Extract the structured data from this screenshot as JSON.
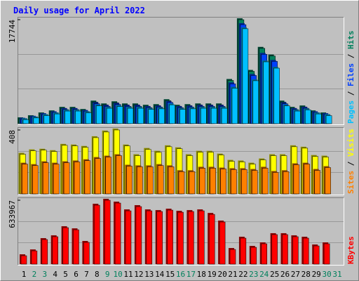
{
  "chart_data": [
    {
      "type": "bar",
      "title": "Daily usage for April 2022",
      "categories": [
        "1",
        "2",
        "3",
        "4",
        "5",
        "6",
        "7",
        "8",
        "9",
        "10",
        "11",
        "12",
        "13",
        "14",
        "15",
        "16",
        "17",
        "18",
        "19",
        "20",
        "21",
        "22",
        "23",
        "24",
        "25",
        "26",
        "27",
        "28",
        "29",
        "30",
        "31"
      ],
      "category_colors": [
        "#000000",
        "#00805c",
        "#00805c",
        "#000000",
        "#000000",
        "#000000",
        "#000000",
        "#000000",
        "#00805c",
        "#00805c",
        "#000000",
        "#000000",
        "#000000",
        "#000000",
        "#000000",
        "#00805c",
        "#00805c",
        "#000000",
        "#000000",
        "#000000",
        "#000000",
        "#000000",
        "#00805c",
        "#00805c",
        "#000000",
        "#000000",
        "#000000",
        "#000000",
        "#000000",
        "#00805c",
        "#00805c"
      ],
      "legend_separator": " / ",
      "ylim": [
        0,
        17744
      ],
      "yticks": [
        17744
      ],
      "series": [
        {
          "name": "Hits",
          "color": "#00805c",
          "values": [
            830,
            1190,
            1670,
            2020,
            2620,
            2620,
            2260,
            3690,
            3210,
            3570,
            3210,
            3210,
            2980,
            3090,
            3930,
            2980,
            3090,
            3210,
            3210,
            3210,
            7380,
            17744,
            8930,
            12860,
            11550,
            3690,
            2620,
            2860,
            2020,
            1670,
            null
          ]
        },
        {
          "name": "Files",
          "color": "#0040ff",
          "values": [
            760,
            1100,
            1540,
            1860,
            2410,
            2410,
            2080,
            3400,
            2950,
            3280,
            2950,
            2950,
            2740,
            2840,
            3620,
            2740,
            2840,
            2950,
            2950,
            2950,
            6790,
            16900,
            8220,
            11830,
            10630,
            3400,
            2410,
            2630,
            1860,
            1540,
            null
          ]
        },
        {
          "name": "Pages",
          "color": "#00c0ff",
          "values": [
            680,
            980,
            1370,
            1660,
            2150,
            2150,
            1850,
            3030,
            2630,
            2930,
            2630,
            2630,
            2440,
            2530,
            3220,
            2440,
            2530,
            2630,
            2630,
            2630,
            6050,
            16200,
            7320,
            10550,
            9470,
            3030,
            2150,
            2350,
            1660,
            1370,
            null
          ]
        }
      ]
    },
    {
      "type": "bar",
      "legend_separator": " / ",
      "ylim": [
        0,
        408
      ],
      "yticks": [
        408
      ],
      "series": [
        {
          "name": "Visits",
          "color": "#ffff00",
          "values": [
            253,
            275,
            279,
            270,
            310,
            306,
            297,
            359,
            395,
            408,
            306,
            244,
            284,
            266,
            301,
            288,
            244,
            266,
            266,
            248,
            208,
            204,
            190,
            217,
            244,
            244,
            301,
            292,
            239,
            235,
            null
          ]
        },
        {
          "name": "Sites",
          "color": "#ff8000",
          "values": [
            190,
            181,
            199,
            190,
            199,
            204,
            212,
            226,
            235,
            244,
            177,
            173,
            173,
            181,
            173,
            142,
            142,
            164,
            164,
            159,
            155,
            155,
            150,
            164,
            137,
            142,
            186,
            190,
            150,
            168,
            null
          ]
        }
      ]
    },
    {
      "type": "bar",
      "ylim": [
        0,
        633967
      ],
      "yticks": [
        633967
      ],
      "series": [
        {
          "name": "KBytes",
          "color": "#ff0000",
          "values": [
            83600,
            132000,
            244000,
            272000,
            362000,
            341000,
            216000,
            585000,
            633967,
            606000,
            529000,
            571000,
            529000,
            522000,
            536000,
            515000,
            522000,
            529000,
            494000,
            418000,
            146000,
            258000,
            167000,
            202000,
            293000,
            293000,
            272000,
            258000,
            181000,
            202000,
            null
          ]
        }
      ]
    }
  ]
}
